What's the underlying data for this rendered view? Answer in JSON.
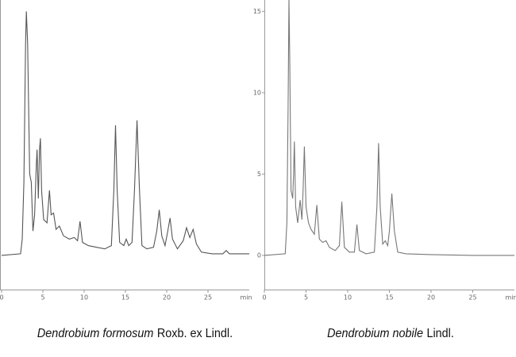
{
  "chart_data": [
    {
      "type": "line",
      "caption_species": "Dendrobium formosum",
      "caption_authority": "Roxb. ex Lindl.",
      "x_unit": "min",
      "color": "#555555",
      "xlim": [
        0,
        30
      ],
      "xticks": [
        0,
        5,
        10,
        15,
        20,
        25
      ],
      "ylim": [
        -2.1,
        15.7
      ],
      "yticks": [],
      "x": [
        0,
        2.3,
        2.5,
        2.7,
        2.9,
        3.0,
        3.15,
        3.4,
        3.6,
        3.8,
        4.0,
        4.2,
        4.3,
        4.45,
        4.6,
        4.7,
        4.85,
        5.1,
        5.5,
        5.8,
        6.0,
        6.3,
        6.6,
        7.0,
        7.5,
        8.2,
        8.8,
        9.2,
        9.5,
        9.8,
        10.5,
        11.5,
        12.5,
        13.3,
        13.6,
        13.8,
        14.0,
        14.3,
        14.8,
        15.1,
        15.4,
        15.8,
        16.1,
        16.4,
        16.7,
        17.0,
        17.6,
        18.4,
        18.8,
        19.1,
        19.4,
        19.8,
        20.1,
        20.4,
        20.7,
        21.3,
        22.0,
        22.4,
        22.8,
        23.2,
        23.6,
        24.2,
        25.5,
        26.8,
        27.2,
        27.6,
        28.5,
        30
      ],
      "values": [
        0,
        0.1,
        1.0,
        4.5,
        13,
        15,
        13,
        5,
        4.5,
        1.5,
        2.5,
        5.5,
        6.5,
        3.5,
        6.5,
        7.2,
        4,
        2.2,
        2.0,
        4.0,
        2.5,
        2.6,
        1.6,
        1.8,
        1.2,
        1.0,
        1.1,
        0.9,
        2.1,
        0.8,
        0.6,
        0.5,
        0.4,
        0.6,
        4,
        8.0,
        4,
        0.8,
        0.6,
        1.0,
        0.6,
        0.8,
        4,
        8.3,
        4,
        0.6,
        0.4,
        0.5,
        1.5,
        2.8,
        1.2,
        0.6,
        1.4,
        2.3,
        1.0,
        0.4,
        0.9,
        1.7,
        1.1,
        1.6,
        0.7,
        0.2,
        0.1,
        0.1,
        0.3,
        0.1,
        0.1,
        0.1
      ]
    },
    {
      "type": "line",
      "caption_species": "Dendrobium nobile",
      "caption_authority": "Lindl.",
      "x_unit": "min",
      "color": "#777777",
      "xlim": [
        0,
        30
      ],
      "xticks": [
        0,
        5,
        10,
        15,
        20,
        25
      ],
      "ylim": [
        -2.1,
        15.7
      ],
      "yticks": [
        0,
        5,
        10,
        15
      ],
      "x": [
        0,
        2.5,
        2.7,
        2.85,
        2.95,
        3.05,
        3.2,
        3.4,
        3.5,
        3.6,
        3.75,
        4.0,
        4.3,
        4.5,
        4.65,
        4.8,
        5.0,
        5.3,
        5.6,
        6.0,
        6.3,
        6.6,
        7.0,
        7.4,
        7.8,
        8.5,
        9.0,
        9.3,
        9.6,
        10.2,
        10.8,
        11.1,
        11.4,
        12.2,
        13.2,
        13.5,
        13.7,
        13.9,
        14.2,
        14.5,
        14.8,
        15.0,
        15.3,
        15.6,
        16.0,
        17,
        20,
        25,
        30
      ],
      "values": [
        0,
        0.1,
        2,
        9,
        15.8,
        12,
        4,
        3.5,
        5,
        7.0,
        3,
        2,
        3.4,
        2.2,
        4,
        6.7,
        3,
        2.0,
        1.6,
        1.3,
        3.1,
        1.0,
        0.8,
        0.9,
        0.5,
        0.3,
        0.6,
        3.3,
        0.5,
        0.2,
        0.2,
        1.9,
        0.3,
        0.1,
        0.2,
        3,
        6.9,
        3,
        0.7,
        0.9,
        0.6,
        1.5,
        3.8,
        1.5,
        0.2,
        0.1,
        0.05,
        0,
        0
      ]
    }
  ]
}
